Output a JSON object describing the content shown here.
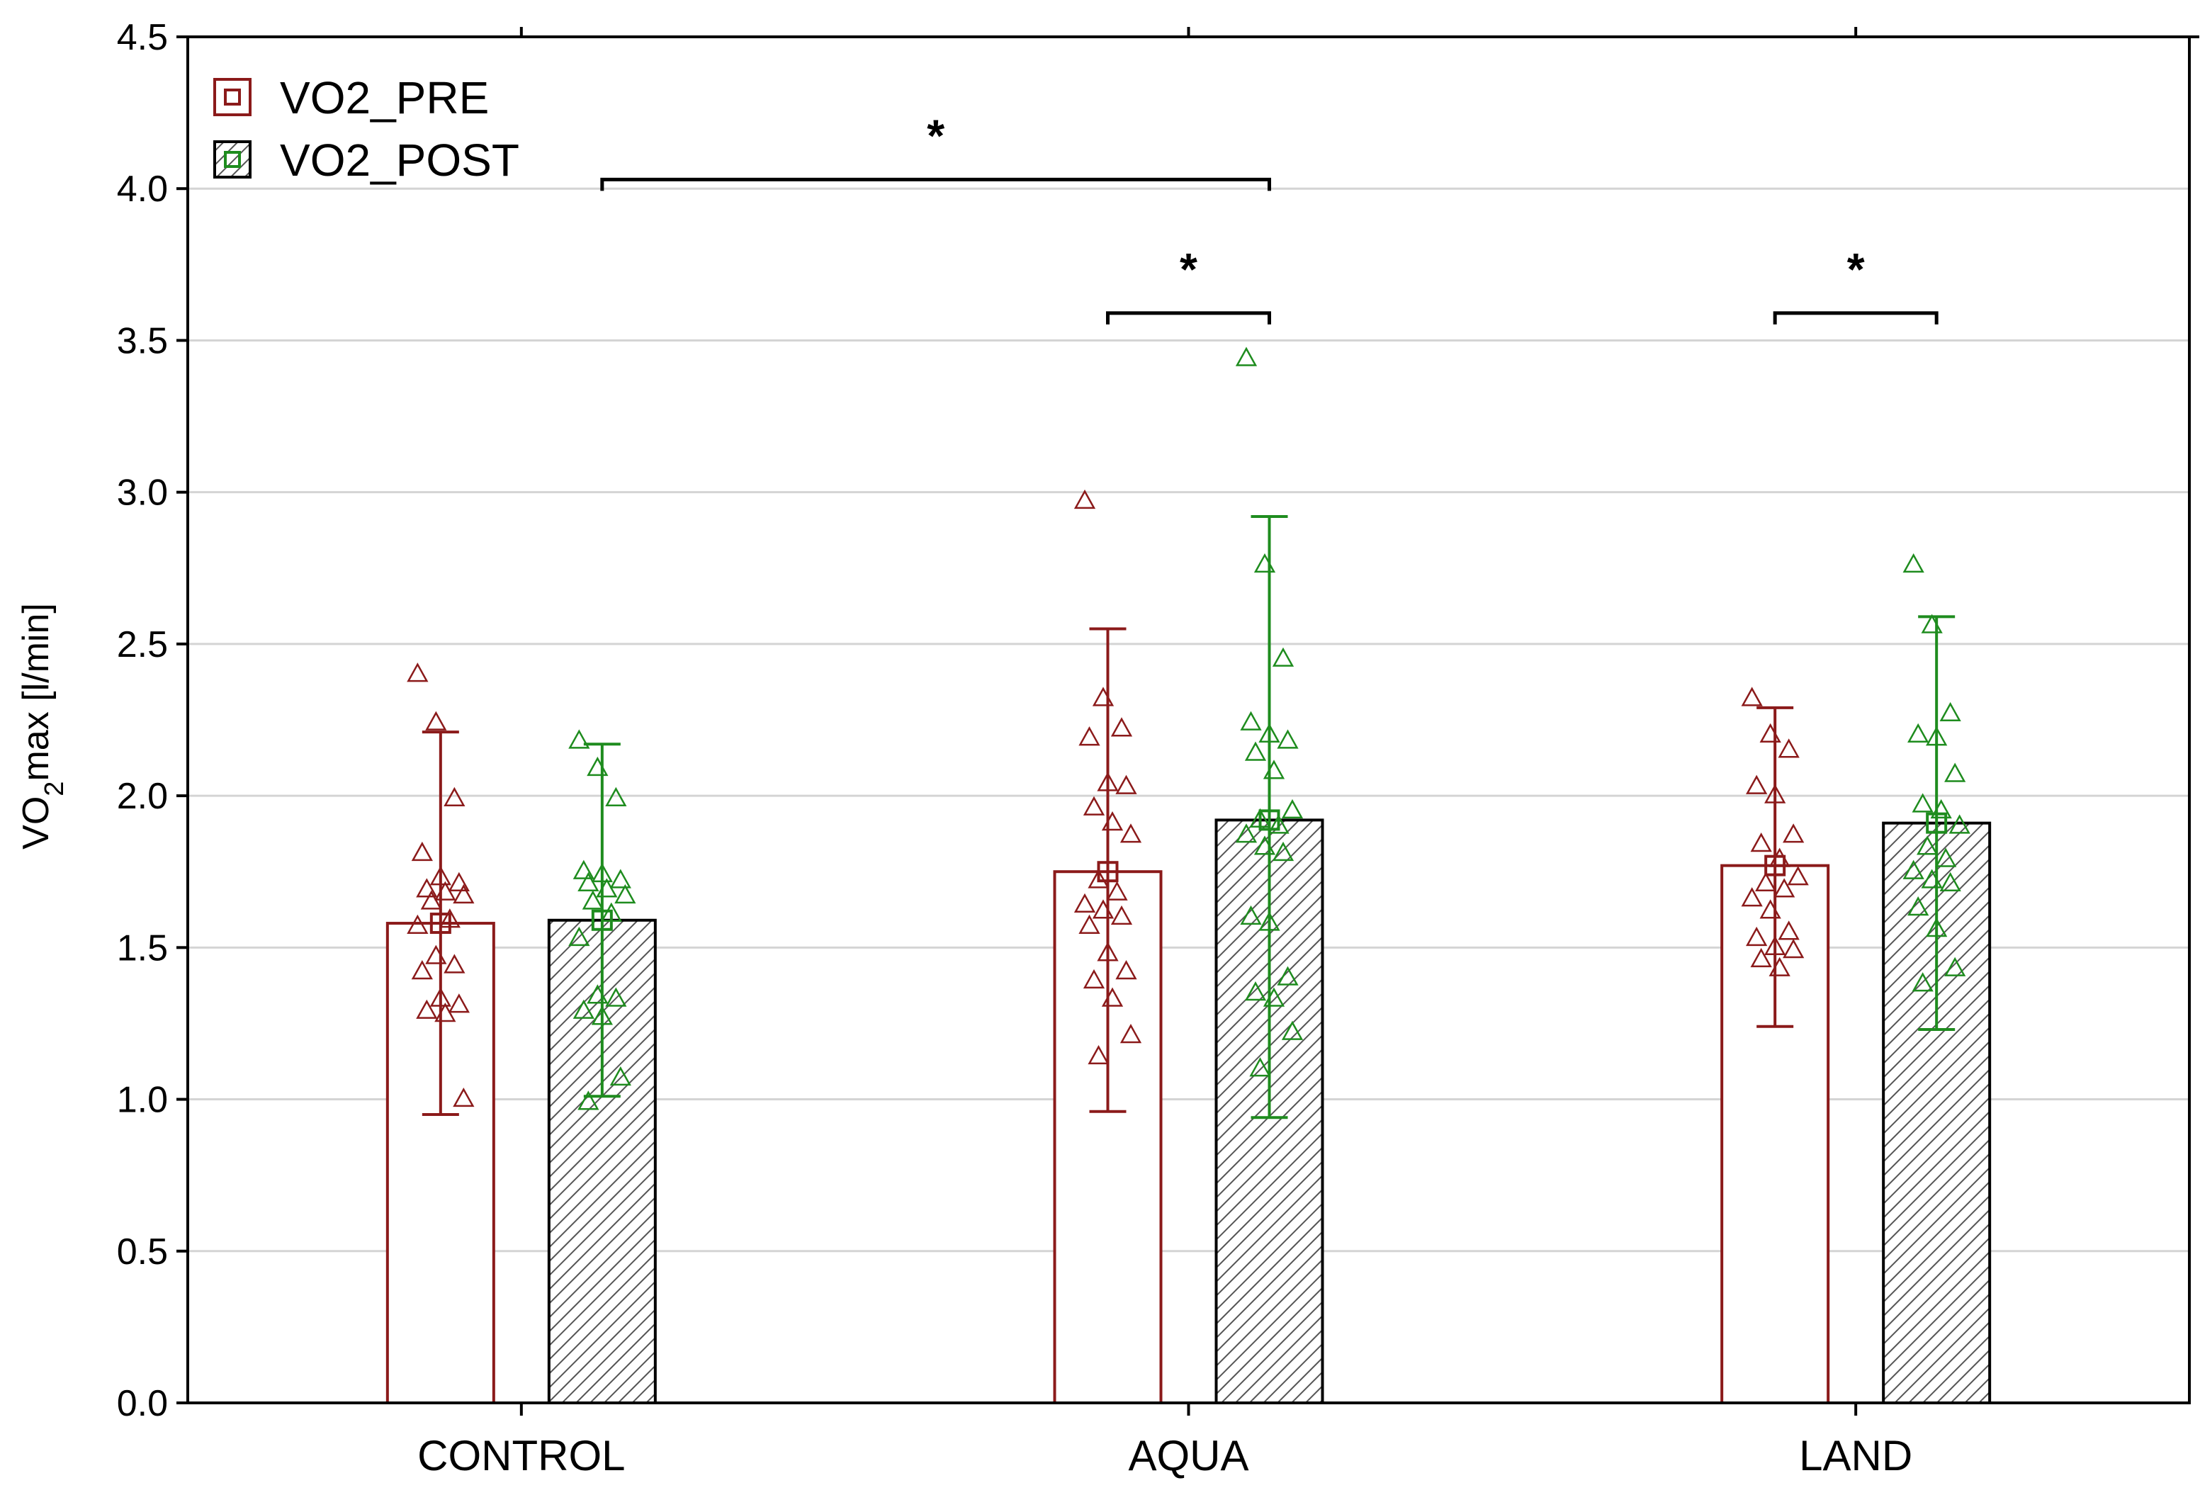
{
  "chart_data": {
    "type": "bar",
    "title": "",
    "xlabel": "",
    "ylabel": "VO2max [l/min]",
    "ylabel_parts": {
      "main": "VO",
      "sub": "2",
      "rest": "max [l/min]"
    },
    "ylim": [
      0,
      4.5
    ],
    "yticks": [
      "0.0",
      "0.5",
      "1.0",
      "1.5",
      "2.0",
      "2.5",
      "3.0",
      "3.5",
      "4.0",
      "4.5"
    ],
    "grid": true,
    "legend_position": "top-left",
    "categories": [
      "CONTROL",
      "AQUA",
      "LAND"
    ],
    "series": [
      {
        "name": "VO2_PRE",
        "color": "#8b1a1a",
        "fill": "white",
        "values": [
          1.58,
          1.75,
          1.77
        ],
        "error_low": [
          0.95,
          0.96,
          1.24
        ],
        "error_high": [
          2.21,
          2.55,
          2.29
        ],
        "points": [
          [
            2.4,
            2.24,
            1.99,
            1.81,
            1.73,
            1.71,
            1.69,
            1.68,
            1.67,
            1.65,
            1.59,
            1.57,
            1.47,
            1.44,
            1.42,
            1.33,
            1.31,
            1.29,
            1.28,
            1.0
          ],
          [
            2.97,
            2.32,
            2.22,
            2.19,
            2.04,
            2.03,
            1.96,
            1.91,
            1.87,
            1.72,
            1.68,
            1.64,
            1.62,
            1.6,
            1.57,
            1.48,
            1.42,
            1.39,
            1.33,
            1.21,
            1.14
          ],
          [
            2.32,
            2.2,
            2.15,
            2.03,
            2.0,
            1.87,
            1.84,
            1.79,
            1.73,
            1.71,
            1.69,
            1.66,
            1.62,
            1.55,
            1.53,
            1.5,
            1.49,
            1.46,
            1.43
          ]
        ]
      },
      {
        "name": "VO2_POST",
        "color": "#1e8c1e",
        "fill": "hatched",
        "values": [
          1.59,
          1.92,
          1.91
        ],
        "error_low": [
          1.01,
          0.94,
          1.23
        ],
        "error_high": [
          2.17,
          2.92,
          2.59
        ],
        "points": [
          [
            2.18,
            2.09,
            1.99,
            1.75,
            1.74,
            1.72,
            1.71,
            1.69,
            1.67,
            1.65,
            1.61,
            1.53,
            1.34,
            1.33,
            1.29,
            1.27,
            1.07,
            0.99
          ],
          [
            3.44,
            2.76,
            2.45,
            2.24,
            2.2,
            2.18,
            2.14,
            2.08,
            1.95,
            1.92,
            1.9,
            1.87,
            1.83,
            1.81,
            1.6,
            1.58,
            1.4,
            1.35,
            1.33,
            1.22,
            1.1
          ],
          [
            2.76,
            2.56,
            2.27,
            2.2,
            2.19,
            2.07,
            1.97,
            1.95,
            1.9,
            1.83,
            1.79,
            1.75,
            1.72,
            1.71,
            1.63,
            1.56,
            1.43,
            1.38
          ]
        ]
      }
    ],
    "significance": [
      {
        "label": "*",
        "from": [
          0,
          1
        ],
        "to": [
          1,
          1
        ],
        "y": 4.03
      },
      {
        "label": "*",
        "from": [
          1,
          0
        ],
        "to": [
          1,
          1
        ],
        "y": 3.59
      },
      {
        "label": "*",
        "from": [
          2,
          0
        ],
        "to": [
          2,
          1
        ],
        "y": 3.59
      }
    ]
  }
}
